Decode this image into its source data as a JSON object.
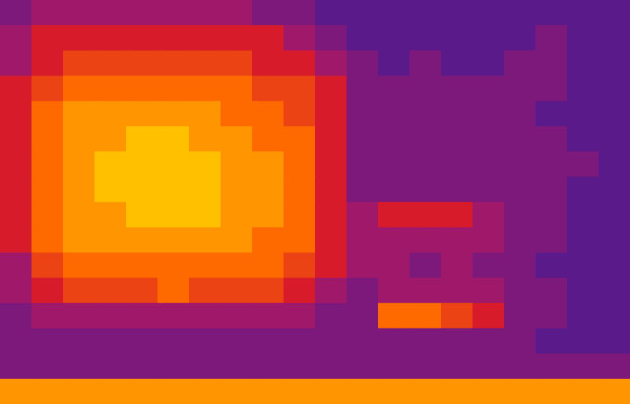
{
  "chart_data": {
    "type": "heatmap",
    "xlim": [
      0,
      20
    ],
    "ylim": [
      0,
      16
    ],
    "zlim": [
      0,
      10
    ],
    "tick_labels": false,
    "grid": false,
    "cells": [
      [
        3,
        4,
        4,
        4,
        4,
        4,
        4,
        4,
        3,
        3,
        2,
        2,
        2,
        2,
        2,
        2,
        2,
        2,
        2,
        2
      ],
      [
        4,
        5,
        5,
        5,
        5,
        5,
        5,
        5,
        5,
        4,
        3,
        2,
        2,
        2,
        2,
        2,
        2,
        3,
        2,
        2
      ],
      [
        4,
        5,
        6,
        6,
        6,
        6,
        6,
        6,
        5,
        5,
        4,
        3,
        2,
        3,
        2,
        2,
        3,
        3,
        2,
        2
      ],
      [
        5,
        6,
        7,
        7,
        7,
        7,
        7,
        7,
        6,
        6,
        5,
        3,
        3,
        3,
        3,
        3,
        3,
        3,
        2,
        2
      ],
      [
        5,
        7,
        8,
        8,
        8,
        8,
        8,
        7,
        7,
        6,
        5,
        3,
        3,
        3,
        3,
        3,
        3,
        2,
        2,
        2
      ],
      [
        5,
        7,
        8,
        8,
        9,
        9,
        8,
        8,
        7,
        7,
        5,
        3,
        3,
        3,
        3,
        3,
        3,
        3,
        2,
        2
      ],
      [
        5,
        7,
        8,
        9,
        9,
        9,
        9,
        8,
        8,
        7,
        5,
        3,
        3,
        3,
        3,
        3,
        3,
        3,
        3,
        2
      ],
      [
        5,
        7,
        8,
        9,
        9,
        9,
        9,
        8,
        8,
        7,
        5,
        3,
        3,
        3,
        3,
        3,
        3,
        3,
        2,
        2
      ],
      [
        5,
        7,
        8,
        8,
        9,
        9,
        9,
        8,
        8,
        7,
        5,
        4,
        5,
        5,
        5,
        4,
        3,
        3,
        2,
        2
      ],
      [
        5,
        7,
        8,
        8,
        8,
        8,
        8,
        8,
        7,
        7,
        5,
        4,
        4,
        4,
        4,
        4,
        3,
        3,
        2,
        2
      ],
      [
        4,
        6,
        7,
        7,
        7,
        7,
        7,
        7,
        7,
        6,
        5,
        4,
        4,
        3,
        4,
        3,
        3,
        2,
        2,
        2
      ],
      [
        4,
        5,
        6,
        6,
        6,
        7,
        6,
        6,
        6,
        5,
        4,
        3,
        4,
        4,
        4,
        4,
        3,
        3,
        2,
        2
      ],
      [
        3,
        4,
        4,
        4,
        4,
        4,
        4,
        4,
        4,
        4,
        3,
        3,
        7,
        7,
        6,
        5,
        3,
        3,
        2,
        2
      ],
      [
        3,
        3,
        3,
        3,
        3,
        3,
        3,
        3,
        3,
        3,
        3,
        3,
        3,
        3,
        3,
        3,
        3,
        2,
        2,
        2
      ],
      [
        3,
        3,
        3,
        3,
        3,
        3,
        3,
        3,
        3,
        3,
        3,
        3,
        3,
        3,
        3,
        3,
        3,
        3,
        3,
        3
      ],
      [
        8,
        8,
        8,
        8,
        8,
        8,
        8,
        8,
        8,
        8,
        8,
        8,
        8,
        8,
        8,
        8,
        8,
        8,
        8,
        8
      ]
    ]
  }
}
